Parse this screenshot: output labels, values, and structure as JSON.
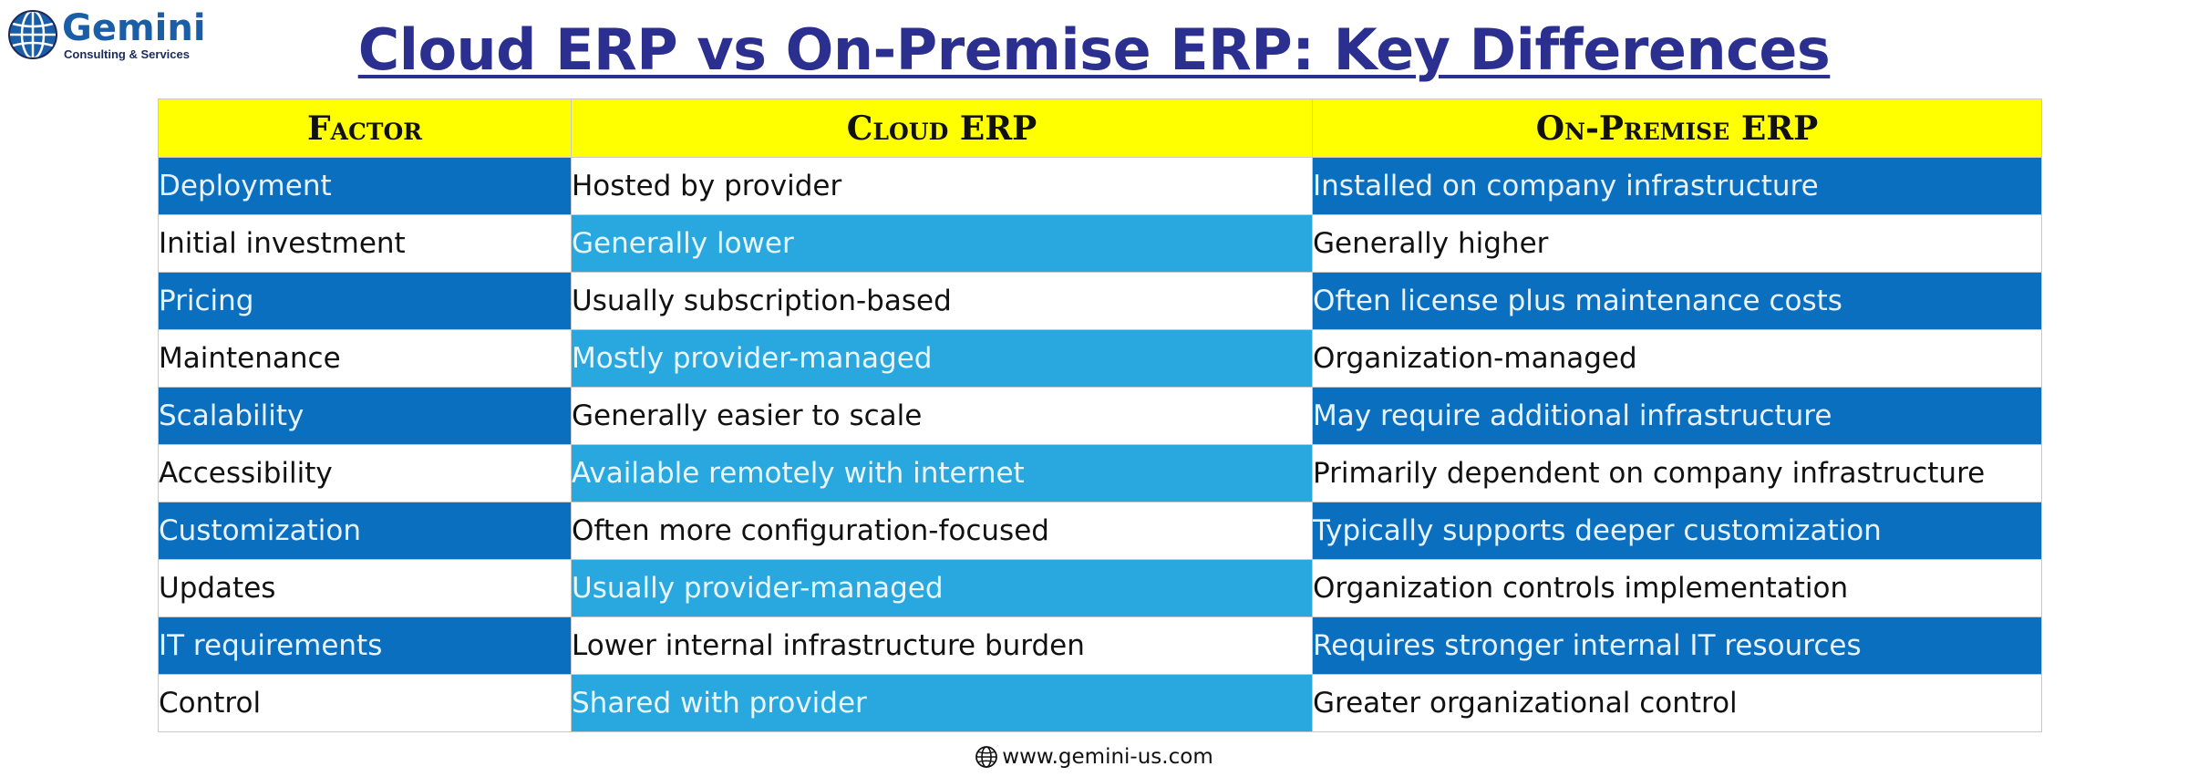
{
  "logo": {
    "name": "Gemini",
    "subtitle": "Consulting & Services"
  },
  "title": "Cloud ERP vs On-Premise ERP: Key Differences",
  "table": {
    "headers": [
      "Factor",
      "Cloud ERP",
      "On-Premise ERP"
    ],
    "rows": [
      [
        "Deployment",
        "Hosted by provider",
        "Installed on company infrastructure"
      ],
      [
        "Initial investment",
        "Generally lower",
        "Generally higher"
      ],
      [
        "Pricing",
        "Usually subscription-based",
        "Often license plus maintenance costs"
      ],
      [
        "Maintenance",
        "Mostly provider-managed",
        "Organization-managed"
      ],
      [
        "Scalability",
        "Generally easier to scale",
        "May require additional infrastructure"
      ],
      [
        "Accessibility",
        "Available remotely with internet",
        "Primarily dependent on company infrastructure"
      ],
      [
        "Customization",
        "Often more configuration-focused",
        "Typically supports deeper customization"
      ],
      [
        "Updates",
        "Usually provider-managed",
        "Organization controls implementation"
      ],
      [
        "IT requirements",
        "Lower internal infrastructure burden",
        "Requires stronger internal IT resources"
      ],
      [
        "Control",
        "Shared with provider",
        "Greater organizational control"
      ]
    ]
  },
  "footer": {
    "url": "www.gemini-us.com",
    "icon": "globe-icon"
  },
  "colors": {
    "title": "#2b2f8f",
    "header_bg": "#ffff00",
    "dark_blue": "#0a6fbf",
    "light_blue": "#29a8df",
    "logo_blue": "#1a5ea8"
  }
}
